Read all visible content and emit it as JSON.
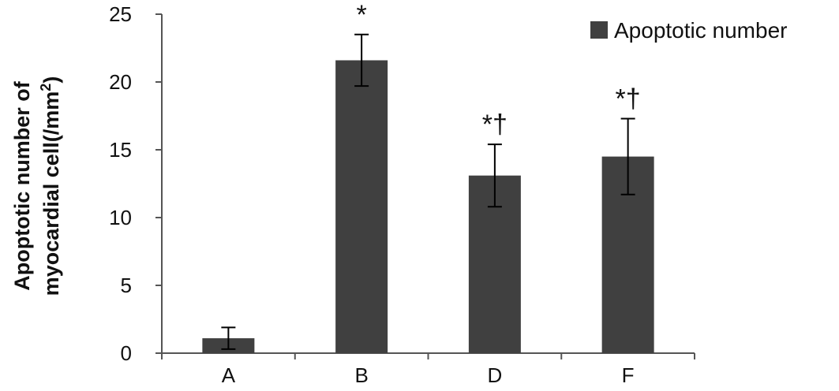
{
  "chart_data": {
    "type": "bar",
    "categories": [
      "A",
      "B",
      "D",
      "F"
    ],
    "series": [
      {
        "name": "Apoptotic number",
        "values": [
          1.1,
          21.6,
          13.1,
          14.5
        ],
        "error": [
          0.8,
          1.9,
          2.3,
          2.8
        ],
        "color": "#404040"
      }
    ],
    "annotations": [
      "",
      "*",
      "*†",
      "*†"
    ],
    "ylabel_line1": "Apoptotic number of",
    "ylabel_line2": "myocardial cell(/mm",
    "ylabel_sup": "2",
    "ylabel_close": ")",
    "ylim": [
      0,
      25
    ],
    "yticks": [
      0,
      5,
      10,
      15,
      20,
      25
    ],
    "grid": false,
    "legend_position": "top-right"
  }
}
